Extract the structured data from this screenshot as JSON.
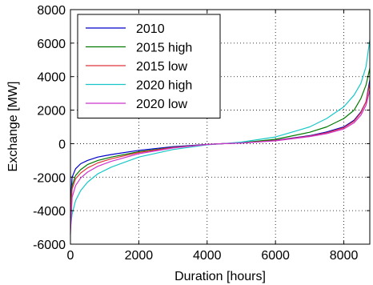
{
  "chart_data": {
    "type": "line",
    "title": "",
    "xlabel": "Duration [hours]",
    "ylabel": "Exchange [MW]",
    "xlim": [
      0,
      8760
    ],
    "ylim": [
      -6000,
      8000
    ],
    "xticks": [
      0,
      2000,
      4000,
      6000,
      8000
    ],
    "yticks": [
      -6000,
      -4000,
      -2000,
      0,
      2000,
      4000,
      6000,
      8000
    ],
    "xtick_labels": [
      "0",
      "2000",
      "4000",
      "6000",
      "8000"
    ],
    "ytick_labels": [
      "-6000",
      "-4000",
      "-2000",
      "0",
      "2000",
      "4000",
      "6000",
      "8000"
    ],
    "grid": true,
    "legend_position": "top-left",
    "series": [
      {
        "name": "2010",
        "color": "#0000cc",
        "x": [
          0,
          50,
          150,
          300,
          500,
          800,
          1200,
          2000,
          3000,
          4000,
          4500,
          5000,
          6000,
          7000,
          7500,
          8000,
          8300,
          8500,
          8650,
          8760
        ],
        "y": [
          -3600,
          -2000,
          -1500,
          -1200,
          -1000,
          -800,
          -650,
          -400,
          -180,
          -40,
          0,
          40,
          200,
          480,
          700,
          1000,
          1400,
          1900,
          2500,
          3800
        ]
      },
      {
        "name": "2015 high",
        "color": "#007a00",
        "x": [
          0,
          50,
          150,
          300,
          500,
          800,
          1200,
          2000,
          3000,
          4000,
          4500,
          5000,
          6000,
          7000,
          7500,
          8000,
          8300,
          8500,
          8650,
          8760
        ],
        "y": [
          -4000,
          -2500,
          -1900,
          -1550,
          -1250,
          -1000,
          -800,
          -480,
          -220,
          -50,
          0,
          50,
          260,
          680,
          1000,
          1500,
          2000,
          2700,
          3500,
          4500
        ]
      },
      {
        "name": "2015 low",
        "color": "#e0343a",
        "x": [
          0,
          50,
          150,
          300,
          500,
          800,
          1200,
          2000,
          3000,
          4000,
          4500,
          5000,
          6000,
          7000,
          7500,
          8000,
          8300,
          8500,
          8650,
          8760
        ],
        "y": [
          -4400,
          -2700,
          -2100,
          -1750,
          -1450,
          -1150,
          -900,
          -530,
          -230,
          -50,
          0,
          40,
          190,
          450,
          650,
          950,
          1350,
          1850,
          2500,
          3600
        ]
      },
      {
        "name": "2020 high",
        "color": "#17c7c7",
        "x": [
          0,
          50,
          150,
          300,
          500,
          800,
          1200,
          2000,
          3000,
          4000,
          4500,
          5000,
          6000,
          7000,
          7500,
          8000,
          8300,
          8500,
          8650,
          8760
        ],
        "y": [
          -5000,
          -4200,
          -3400,
          -2800,
          -2300,
          -1800,
          -1400,
          -800,
          -350,
          -70,
          0,
          90,
          400,
          1000,
          1500,
          2200,
          2900,
          3600,
          4600,
          6200
        ]
      },
      {
        "name": "2020 low",
        "color": "#cc33cc",
        "x": [
          0,
          50,
          150,
          300,
          500,
          800,
          1200,
          2000,
          3000,
          4000,
          4500,
          5000,
          6000,
          7000,
          7500,
          8000,
          8300,
          8500,
          8650,
          8760
        ],
        "y": [
          -5400,
          -3200,
          -2500,
          -2050,
          -1700,
          -1350,
          -1050,
          -600,
          -260,
          -50,
          0,
          40,
          170,
          420,
          600,
          880,
          1250,
          1700,
          2300,
          3200
        ]
      }
    ]
  }
}
